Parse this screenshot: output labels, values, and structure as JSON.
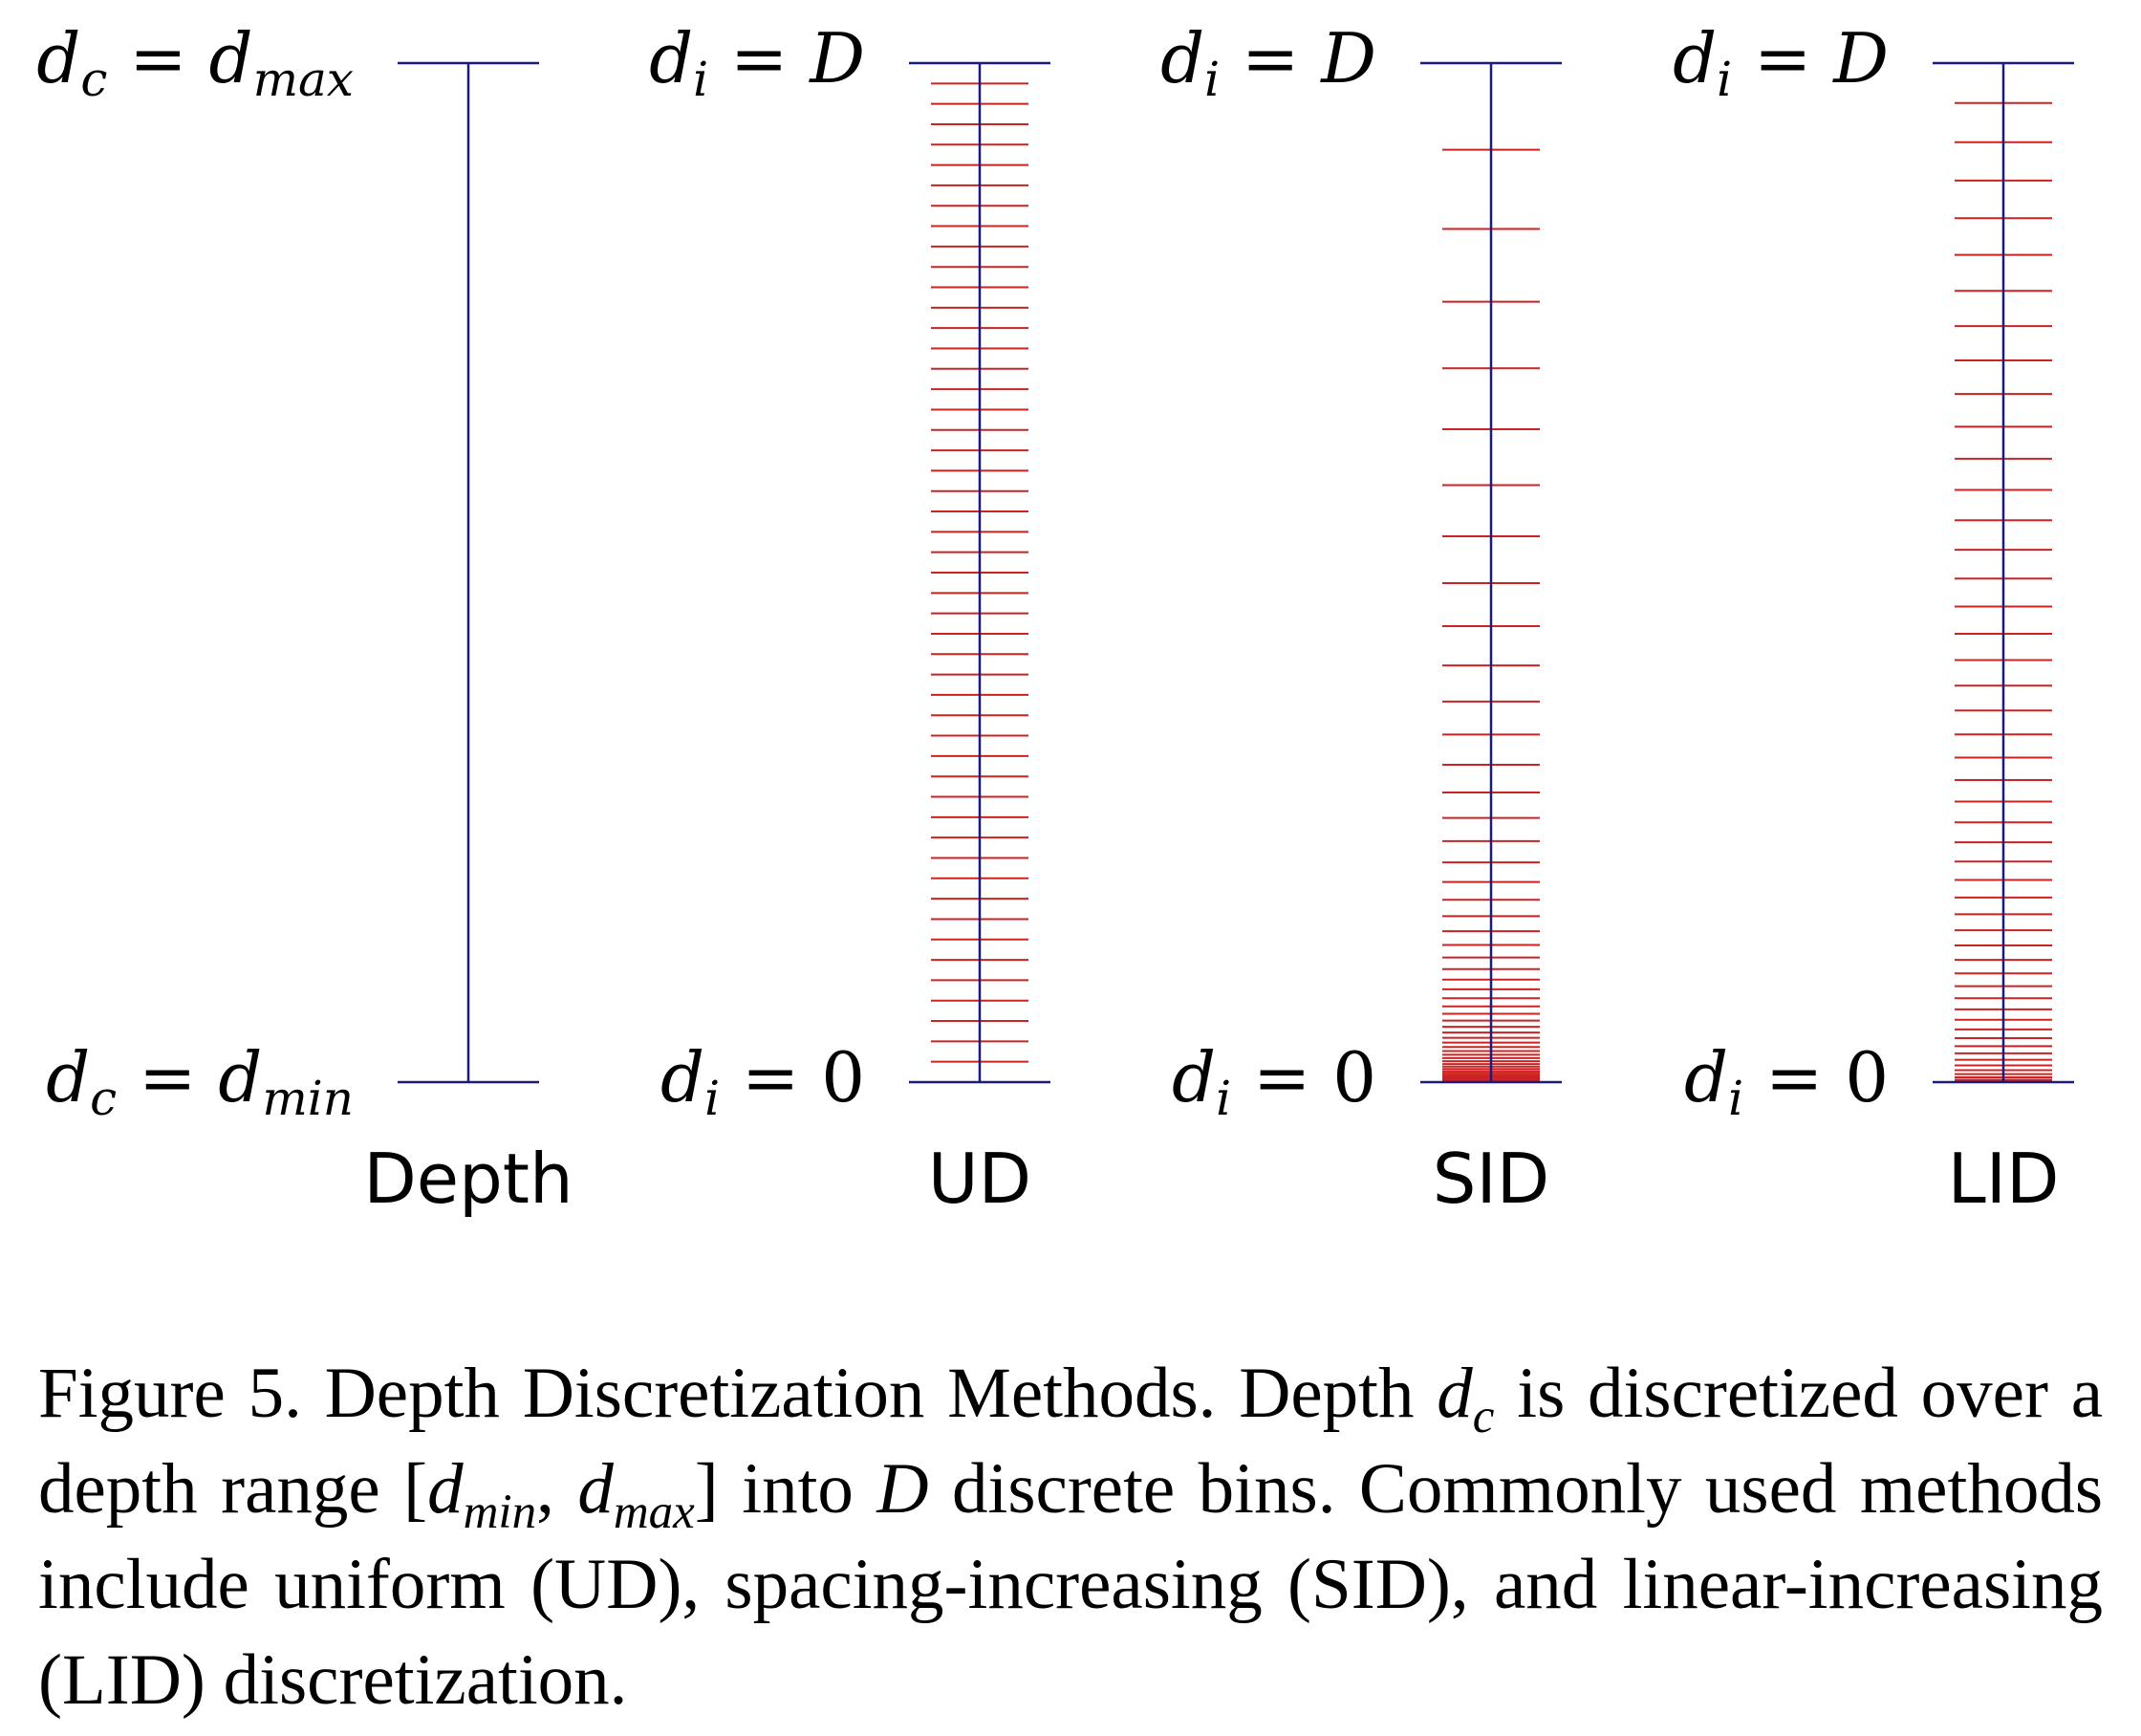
{
  "figure": {
    "colors": {
      "axis": "#1a1a80",
      "bins": "#cc2222",
      "text": "#000000"
    },
    "panels": [
      {
        "id": "depth",
        "name": "Depth",
        "top_label": {
          "var": "d",
          "sub": "c",
          "eq": " = ",
          "rhs": "d",
          "rhs_sub": "max"
        },
        "bottom_label": {
          "var": "d",
          "sub": "c",
          "eq": " = ",
          "rhs": "d",
          "rhs_sub": "min"
        },
        "bins": 0,
        "mode": "none"
      },
      {
        "id": "ud",
        "name": "UD",
        "top_label": {
          "var": "d",
          "sub": "i",
          "eq": " = ",
          "rhs": "D",
          "rhs_sub": ""
        },
        "bottom_label": {
          "var": "d",
          "sub": "i",
          "eq": " = ",
          "rhs": "0",
          "rhs_sub": ""
        },
        "bins": 50,
        "mode": "uniform"
      },
      {
        "id": "sid",
        "name": "SID",
        "top_label": {
          "var": "d",
          "sub": "i",
          "eq": " = ",
          "rhs": "D",
          "rhs_sub": ""
        },
        "bottom_label": {
          "var": "d",
          "sub": "i",
          "eq": " = ",
          "rhs": "0",
          "rhs_sub": ""
        },
        "bins": 50,
        "mode": "spacing-increasing"
      },
      {
        "id": "lid",
        "name": "LID",
        "top_label": {
          "var": "d",
          "sub": "i",
          "eq": " = ",
          "rhs": "D",
          "rhs_sub": ""
        },
        "bottom_label": {
          "var": "d",
          "sub": "i",
          "eq": " = ",
          "rhs": "0",
          "rhs_sub": ""
        },
        "bins": 50,
        "mode": "linear-increasing"
      }
    ]
  },
  "caption": {
    "p1": "Figure 5. Depth Discretization Methods.  Depth ",
    "dc_var": "d",
    "dc_sub": "c",
    "p2": " is discretized over a depth range ",
    "range_open": "[",
    "range_var1": "d",
    "range_sub1": "min",
    "range_sep": ", ",
    "range_var2": "d",
    "range_sub2": "max",
    "range_close": "]",
    "p3": " into ",
    "D_var": "D",
    "p4": " discrete bins. Commonly used methods include uniform (UD), spacing-increasing (SID), and linear-increasing (LID) discretization."
  }
}
